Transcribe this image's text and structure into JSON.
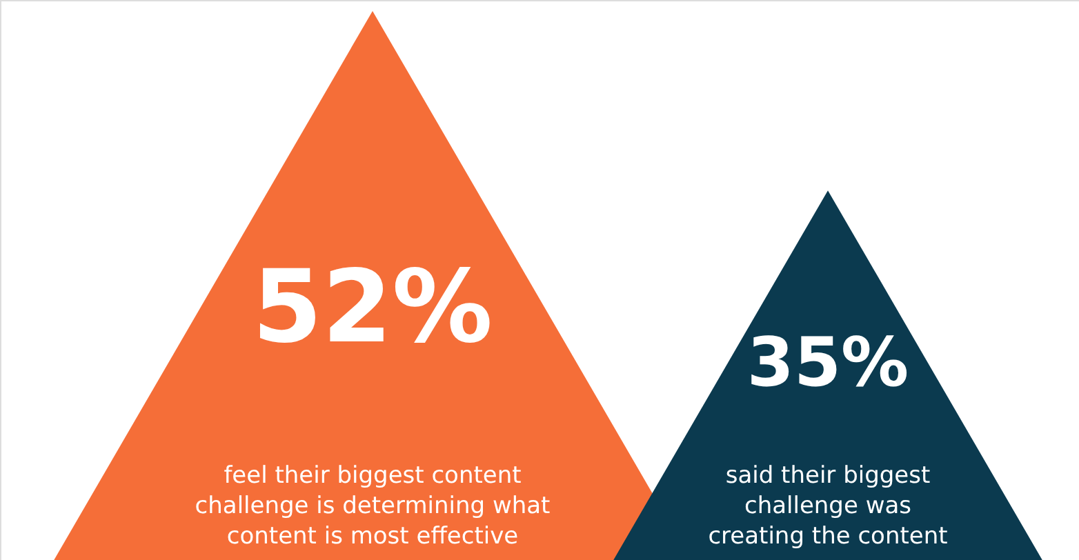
{
  "chart_data": {
    "type": "other",
    "categories": [
      "feel their biggest content challenge is determining what content is most effective",
      "said their biggest challenge was creating the content"
    ],
    "values": [
      52,
      35
    ],
    "colors": [
      "#f56e38",
      "#0b3a4f"
    ],
    "value_labels": [
      "52%",
      "35%"
    ]
  }
}
